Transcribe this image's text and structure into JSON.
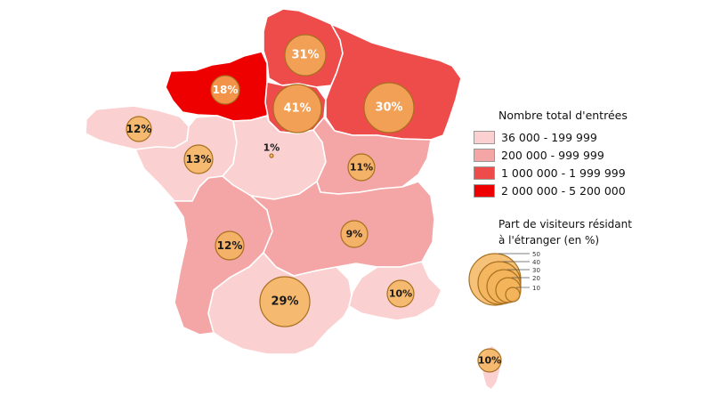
{
  "legend": {
    "title": "Nombre total d'entrées",
    "classes": [
      {
        "label": "36 000 - 199 999",
        "color": "#fbd0d0"
      },
      {
        "label": "200 000 - 999 999",
        "color": "#f4a5a5"
      },
      {
        "label": "1 000 000 - 1 999 999",
        "color": "#ee4b4b"
      },
      {
        "label": "2 000 000 - 5 200 000",
        "color": "#ee0000"
      }
    ]
  },
  "bubble_legend": {
    "title_line1": "Part de visiteurs résidant",
    "title_line2": "à l'étranger (en %)",
    "scale": [
      "50",
      "40",
      "30",
      "20",
      "10"
    ]
  },
  "regions": [
    {
      "name": "Bretagne",
      "label": "12%",
      "color": "#fbd0d0"
    },
    {
      "name": "Normandie",
      "label": "18%",
      "color": "#ee0000"
    },
    {
      "name": "Hauts-de-France",
      "label": "31%",
      "color": "#ee4b4b"
    },
    {
      "name": "Île-de-France",
      "label": "41%",
      "color": "#ee4b4b"
    },
    {
      "name": "Grand Est",
      "label": "30%",
      "color": "#ee4b4b"
    },
    {
      "name": "Pays de la Loire",
      "label": "13%",
      "color": "#fbd0d0"
    },
    {
      "name": "Centre-Val de Loire",
      "label": "1%",
      "color": "#fbd0d0"
    },
    {
      "name": "Bourgogne-Franche-Comté",
      "label": "11%",
      "color": "#f4a5a5"
    },
    {
      "name": "Nouvelle-Aquitaine",
      "label": "12%",
      "color": "#f4a5a5"
    },
    {
      "name": "Auvergne-Rhône-Alpes",
      "label": "9%",
      "color": "#f4a5a5"
    },
    {
      "name": "Occitanie",
      "label": "29%",
      "color": "#fbd0d0"
    },
    {
      "name": "Provence-Alpes-Côte d'Azur",
      "label": "10%",
      "color": "#fbd0d0"
    },
    {
      "name": "Corse",
      "label": "10%",
      "color": "#fbd0d0"
    }
  ]
}
